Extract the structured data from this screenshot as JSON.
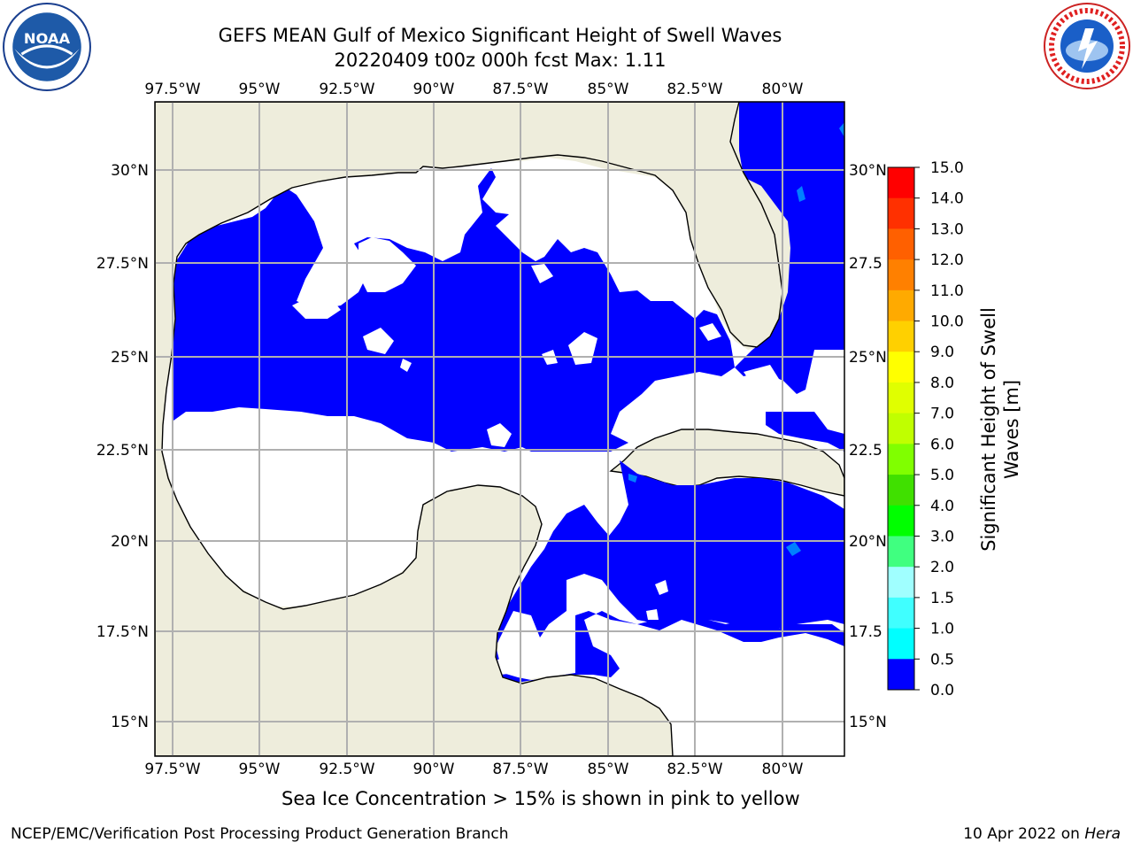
{
  "title": {
    "line1": "GEFS MEAN Gulf of Mexico Significant Height of Swell Waves",
    "line2": "20220409 t00z 000h fcst   Max: 1.11"
  },
  "logos": {
    "left": "noaa-logo",
    "right": "national-weather-service-logo"
  },
  "map": {
    "lon_ticks": [
      "97.5°W",
      "95°W",
      "92.5°W",
      "90°W",
      "87.5°W",
      "85°W",
      "82.5°W",
      "80°W"
    ],
    "lat_ticks_left": [
      "30°N",
      "27.5°N",
      "25°N",
      "22.5°N",
      "20°N",
      "17.5°N",
      "15°N"
    ],
    "lat_ticks_right": [
      "30°N",
      "27.5",
      "25°N",
      "22.5",
      "20°N",
      "17.5",
      "15°N"
    ],
    "extent_lon": [
      -98,
      -80.5
    ],
    "extent_lat": [
      14,
      31.6
    ],
    "colors": {
      "land": "#eeeddc",
      "sea_zero": "#0000ff",
      "sea_half": "#0080ff",
      "sea_one": "#00ffff",
      "missing": "#ffffff",
      "grid": "#b0b0b0"
    }
  },
  "colorbar": {
    "label": "Significant Height of Swell Waves [m]",
    "label_line1": "Significant Height of Swell",
    "label_line2": "Waves [m]",
    "ticks": [
      "15.0",
      "14.0",
      "13.0",
      "12.0",
      "11.0",
      "10.0",
      "9.0",
      "8.0",
      "7.0",
      "6.0",
      "5.0",
      "4.0",
      "3.0",
      "2.0",
      "1.5",
      "1.0",
      "0.5",
      "0.0"
    ],
    "colors": [
      "#ff0000",
      "#ff3000",
      "#ff6000",
      "#ff8000",
      "#ffaa00",
      "#ffd000",
      "#ffff00",
      "#e0ff00",
      "#c0ff00",
      "#80ff00",
      "#40e000",
      "#00ff00",
      "#40ff80",
      "#a0ffff",
      "#40ffff",
      "#00ffff",
      "#0080ff",
      "#0000ff"
    ]
  },
  "footer": {
    "note": "Sea Ice Concentration > 15% is shown in pink to yellow",
    "left": "NCEP/EMC/Verification Post Processing Product Generation Branch",
    "right_date": "10 Apr 2022 on ",
    "right_host": "Hera"
  }
}
